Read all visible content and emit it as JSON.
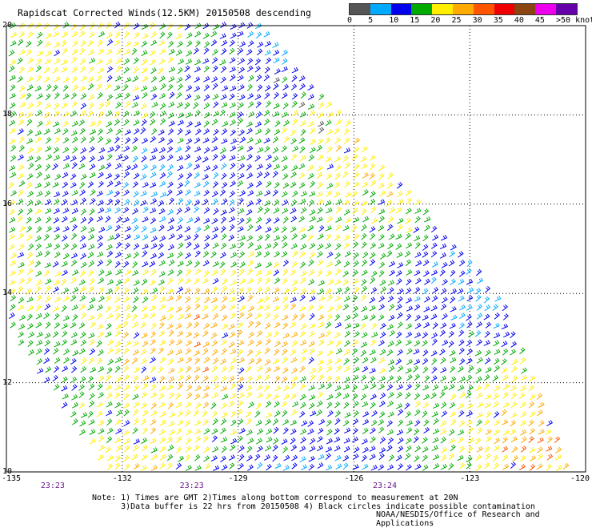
{
  "title": "Rapidscat Corrected Winds(12.5KM) 20150508 descending",
  "legend": {
    "labels": [
      "0",
      "5",
      "10",
      "15",
      "20",
      "25",
      "30",
      "35",
      "40",
      "45",
      ">50 knots"
    ],
    "colors": [
      "#555555",
      "#00aaff",
      "#0000ee",
      "#00aa00",
      "#ffee00",
      "#ffaa00",
      "#ff5500",
      "#ee0000",
      "#8b4513",
      "#ee00ee",
      "#6600aa"
    ]
  },
  "map": {
    "lat_labels": [
      "20",
      "18",
      "16",
      "14",
      "12",
      "10"
    ],
    "lon_labels": [
      "-135",
      "-132",
      "-129",
      "-126",
      "-123",
      "-120"
    ],
    "lat_values": [
      20,
      18,
      16,
      14,
      12,
      10
    ],
    "lon_values": [
      -135,
      -132,
      -129,
      -126,
      -123,
      -120
    ],
    "time_labels": [
      "23:23",
      "23:23",
      "23:24"
    ],
    "time_lons": [
      -133.8,
      -130.2,
      -125.2
    ],
    "swath_corners_latlon": [
      [
        20,
        -135
      ],
      [
        20,
        -128.5
      ],
      [
        13.8,
        -122.2
      ],
      [
        10,
        -120.5
      ],
      [
        10,
        -132.5
      ],
      [
        13.2,
        -135
      ]
    ],
    "wind_direction": "north-east",
    "dominant_speeds": "15-25 knots"
  },
  "notes": {
    "line1": "Note: 1) Times are GMT 2)Times along bottom correspond to measurement at 20N",
    "line2": "      3)Data buffer is 22 hrs from 20150508 4) Black circles indicate possible contamination"
  },
  "credit": "NOAA/NESDIS/Office of Research and Applications"
}
